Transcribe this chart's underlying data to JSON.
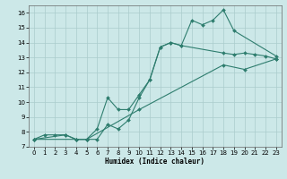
{
  "xlabel": "Humidex (Indice chaleur)",
  "line_color": "#2e7d6e",
  "bg_color": "#cce8e8",
  "grid_color": "#aacccc",
  "xlim": [
    -0.5,
    23.5
  ],
  "ylim": [
    7,
    16.5
  ],
  "xticks": [
    0,
    1,
    2,
    3,
    4,
    5,
    6,
    7,
    8,
    9,
    10,
    11,
    12,
    13,
    14,
    15,
    16,
    17,
    18,
    19,
    20,
    21,
    22,
    23
  ],
  "yticks": [
    7,
    8,
    9,
    10,
    11,
    12,
    13,
    14,
    15,
    16
  ],
  "line1_x": [
    0,
    1,
    2,
    3,
    4,
    5,
    6,
    7,
    8,
    9,
    10,
    11,
    12,
    13,
    14,
    15,
    16,
    17,
    18,
    19,
    23
  ],
  "line1_y": [
    7.5,
    7.8,
    7.8,
    7.8,
    7.5,
    7.5,
    7.5,
    8.5,
    8.2,
    8.8,
    10.3,
    11.5,
    13.7,
    14.0,
    13.8,
    15.5,
    15.2,
    15.5,
    16.2,
    14.8,
    13.1
  ],
  "line2_x": [
    0,
    3,
    4,
    5,
    6,
    7,
    8,
    9,
    10,
    11,
    12,
    13,
    14,
    18,
    19,
    20,
    21,
    22,
    23
  ],
  "line2_y": [
    7.5,
    7.8,
    7.5,
    7.5,
    8.2,
    10.3,
    9.5,
    9.5,
    10.5,
    11.5,
    13.7,
    14.0,
    13.8,
    13.3,
    13.2,
    13.3,
    13.2,
    13.1,
    12.9
  ],
  "line3_x": [
    0,
    4,
    5,
    10,
    18,
    20,
    23
  ],
  "line3_y": [
    7.5,
    7.5,
    7.5,
    9.5,
    12.5,
    12.2,
    12.9
  ]
}
